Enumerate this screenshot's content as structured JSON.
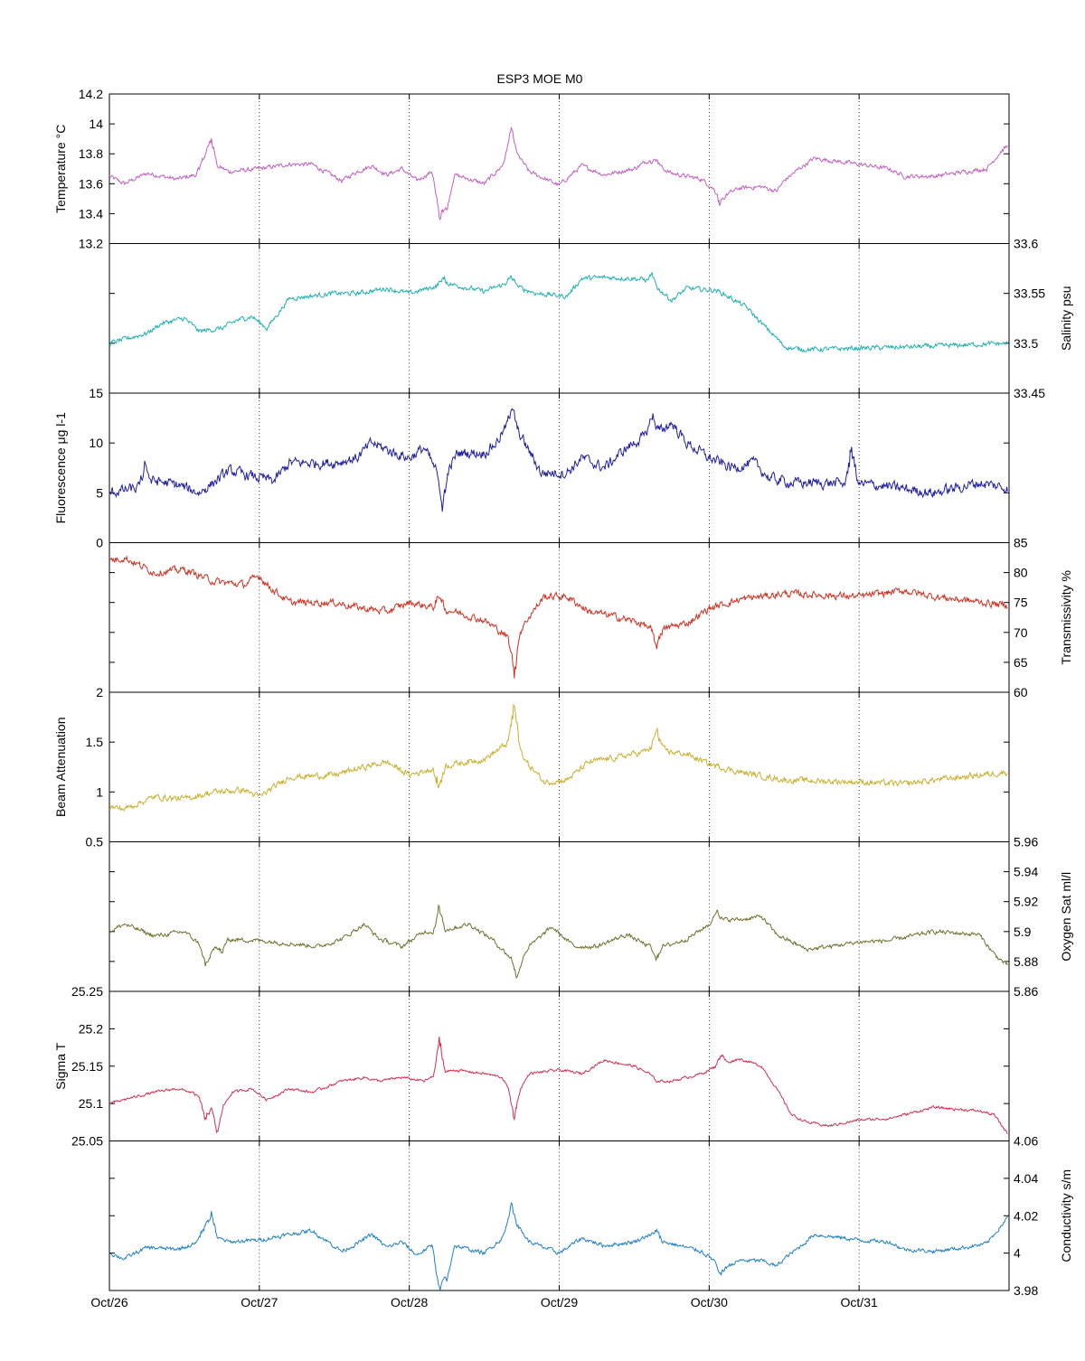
{
  "chart_data": {
    "type": "line",
    "title": "ESP3 MOE   M0",
    "x_axis": {
      "range": [
        "Oct/26",
        "Oct/32"
      ],
      "ticks": [
        "Oct/26",
        "Oct/27",
        "Oct/28",
        "Oct/29",
        "Oct/30",
        "Oct/31"
      ],
      "grid": "vertical dotted"
    },
    "panels": [
      {
        "name": "Temperature °C",
        "ylabel": "Temperature °C",
        "axis_side": "left",
        "color": "#c060c0",
        "ylim": [
          13.2,
          14.2
        ],
        "yticks": [
          "13.2",
          "13.4",
          "13.6",
          "13.8",
          "14",
          "14.2"
        ],
        "noise": 0.012,
        "x": [
          0,
          0.1,
          0.25,
          0.45,
          0.62,
          0.65,
          0.68,
          0.72,
          0.8,
          1.0,
          1.2,
          1.35,
          1.55,
          1.65,
          1.75,
          1.85,
          1.95,
          2.05,
          2.15,
          2.2,
          2.25,
          2.3,
          2.5,
          2.62,
          2.68,
          2.72,
          2.8,
          3.0,
          3.15,
          3.3,
          3.5,
          3.6,
          3.65,
          3.75,
          3.95,
          4.05,
          4.1,
          4.2,
          4.35,
          4.45,
          4.5,
          4.6,
          4.7,
          5.0,
          5.2,
          5.3,
          5.5,
          5.7,
          5.85,
          5.95,
          5.99
        ],
        "y": [
          13.65,
          13.6,
          13.67,
          13.63,
          13.67,
          13.8,
          13.83,
          13.72,
          13.68,
          13.7,
          13.73,
          13.73,
          13.62,
          13.68,
          13.72,
          13.66,
          13.7,
          13.62,
          13.68,
          13.52,
          13.42,
          13.66,
          13.6,
          13.72,
          13.9,
          13.8,
          13.68,
          13.59,
          13.72,
          13.66,
          13.7,
          13.76,
          13.72,
          13.67,
          13.63,
          13.55,
          13.52,
          13.57,
          13.58,
          13.55,
          13.62,
          13.7,
          13.77,
          13.73,
          13.7,
          13.65,
          13.65,
          13.68,
          13.7,
          13.82,
          13.85
        ],
        "spikes": [
          [
            0.62,
            0.1
          ],
          [
            0.68,
            0.1
          ],
          [
            2.2,
            -0.2
          ],
          [
            2.68,
            0.08
          ],
          [
            3.65,
            0.06
          ],
          [
            4.07,
            -0.08
          ]
        ]
      },
      {
        "name": "Salinity psu",
        "ylabel": "Salinity psu",
        "axis_side": "right",
        "color": "#20b0b0",
        "ylim": [
          33.45,
          33.6
        ],
        "yticks": [
          "33.45",
          "33.5",
          "33.55",
          "33.6"
        ],
        "noise": 0.002,
        "x": [
          0,
          0.25,
          0.35,
          0.5,
          0.6,
          0.75,
          0.85,
          0.95,
          1.05,
          1.2,
          1.5,
          1.65,
          1.85,
          2.0,
          2.25,
          2.5,
          2.65,
          2.85,
          3.05,
          3.15,
          3.3,
          3.5,
          3.6,
          3.75,
          3.85,
          4.05,
          4.15,
          4.25,
          4.35,
          4.45,
          4.5,
          4.55,
          4.6,
          4.75,
          5.0,
          5.5,
          5.99
        ],
        "y": [
          33.5,
          33.51,
          33.52,
          33.525,
          33.512,
          33.515,
          33.523,
          33.527,
          33.515,
          33.545,
          33.55,
          33.55,
          33.555,
          33.55,
          33.56,
          33.552,
          33.56,
          33.55,
          33.547,
          33.565,
          33.566,
          33.565,
          33.563,
          33.543,
          33.555,
          33.553,
          33.545,
          33.536,
          33.52,
          33.505,
          33.497,
          33.495,
          33.494,
          33.494,
          33.495,
          33.497,
          33.5
        ],
        "spikes": [
          [
            2.22,
            0.008
          ],
          [
            2.68,
            0.01
          ],
          [
            3.62,
            0.008
          ]
        ]
      },
      {
        "name": "Fluorescence μg l-1",
        "ylabel": "Fluorescence μg l-1",
        "axis_side": "left",
        "color": "#2020a0",
        "ylim": [
          0,
          15
        ],
        "yticks": [
          "0",
          "5",
          "10",
          "15"
        ],
        "noise": 0.45,
        "x": [
          0,
          0.2,
          0.3,
          0.45,
          0.6,
          0.8,
          1.0,
          1.1,
          1.2,
          1.5,
          1.65,
          1.75,
          1.9,
          2.0,
          2.1,
          2.22,
          2.32,
          2.5,
          2.58,
          2.68,
          2.75,
          2.88,
          3.05,
          3.15,
          3.3,
          3.45,
          3.55,
          3.65,
          3.75,
          3.85,
          4.0,
          4.15,
          4.3,
          4.4,
          4.55,
          4.8,
          5.1,
          5.5,
          5.8,
          5.99
        ],
        "y": [
          5.0,
          5.5,
          6.2,
          5.8,
          5.0,
          7.2,
          6.5,
          6.2,
          8.0,
          8.0,
          8.5,
          10.0,
          9.0,
          8.5,
          9.5,
          6.0,
          9.0,
          9.0,
          10.0,
          12.5,
          10.5,
          7.0,
          7.0,
          8.5,
          7.5,
          9.5,
          10.5,
          11.0,
          12.0,
          10.0,
          8.5,
          7.5,
          8.0,
          6.5,
          6.0,
          6.0,
          5.8,
          5.0,
          6.0,
          5.5
        ],
        "spikes": [
          [
            0.24,
            2.5
          ],
          [
            2.22,
            -3.0
          ],
          [
            2.68,
            1.5
          ],
          [
            3.62,
            2.5
          ],
          [
            4.95,
            4.5
          ]
        ]
      },
      {
        "name": "Transmissivity %",
        "ylabel": "Transmissivity %",
        "axis_side": "right",
        "color": "#d03020",
        "ylim": [
          60,
          85
        ],
        "yticks": [
          "60",
          "65",
          "70",
          "75",
          "80",
          "85"
        ],
        "noise": 0.5,
        "x": [
          0,
          0.1,
          0.3,
          0.5,
          0.7,
          0.9,
          1.0,
          1.05,
          1.2,
          1.5,
          1.7,
          1.85,
          2.0,
          2.2,
          2.3,
          2.5,
          2.62,
          2.7,
          2.78,
          2.9,
          3.05,
          3.2,
          3.4,
          3.55,
          3.65,
          3.75,
          3.85,
          4.0,
          4.2,
          4.5,
          5.0,
          5.3,
          5.5,
          5.99
        ],
        "y": [
          82.0,
          82.5,
          80.0,
          80.5,
          78.5,
          78.0,
          79.5,
          78.0,
          75.0,
          75.0,
          74.0,
          73.5,
          75.0,
          74.0,
          73.5,
          72.0,
          70.0,
          68.0,
          72.0,
          76.0,
          76.0,
          73.5,
          72.5,
          71.5,
          70.0,
          71.0,
          71.5,
          74.0,
          75.5,
          76.5,
          76.0,
          77.0,
          76.0,
          74.5
        ],
        "spikes": [
          [
            2.2,
            3.0
          ],
          [
            2.7,
            -6.0
          ],
          [
            3.65,
            -3.0
          ]
        ]
      },
      {
        "name": "Beam Attenuation",
        "ylabel": "Beam Attenuation",
        "axis_side": "left",
        "color": "#c8b030",
        "ylim": [
          0.5,
          2.0
        ],
        "yticks": [
          "0.5",
          "1",
          "1.5",
          "2"
        ],
        "noise": 0.025,
        "x": [
          0,
          0.1,
          0.3,
          0.5,
          0.7,
          0.9,
          1.0,
          1.05,
          1.2,
          1.5,
          1.7,
          1.85,
          2.0,
          2.2,
          2.3,
          2.5,
          2.62,
          2.7,
          2.78,
          2.9,
          3.05,
          3.2,
          3.4,
          3.55,
          3.65,
          3.75,
          3.85,
          4.0,
          4.2,
          4.5,
          5.0,
          5.3,
          5.5,
          5.99
        ],
        "y": [
          0.85,
          0.83,
          0.95,
          0.93,
          1.0,
          1.02,
          0.95,
          1.0,
          1.15,
          1.17,
          1.25,
          1.3,
          1.17,
          1.25,
          1.28,
          1.33,
          1.45,
          1.55,
          1.3,
          1.1,
          1.12,
          1.3,
          1.35,
          1.4,
          1.45,
          1.4,
          1.38,
          1.28,
          1.2,
          1.12,
          1.1,
          1.08,
          1.12,
          1.2
        ],
        "spikes": [
          [
            2.2,
            -0.25
          ],
          [
            2.7,
            0.4
          ],
          [
            3.65,
            0.2
          ]
        ]
      },
      {
        "name": "Oxygen Sat ml/l",
        "ylabel": "Oxygen Sat ml/l",
        "axis_side": "right",
        "color": "#707030",
        "ylim": [
          5.86,
          5.96
        ],
        "yticks": [
          "5.86",
          "5.88",
          "5.9",
          "5.92",
          "5.94",
          "5.96"
        ],
        "noise": 0.0012,
        "x": [
          0,
          0.1,
          0.3,
          0.5,
          0.62,
          0.68,
          0.75,
          1.0,
          1.2,
          1.4,
          1.55,
          1.7,
          1.8,
          1.95,
          2.1,
          2.2,
          2.4,
          2.55,
          2.65,
          2.72,
          2.8,
          2.95,
          3.1,
          3.25,
          3.45,
          3.6,
          3.7,
          3.85,
          4.05,
          4.2,
          4.35,
          4.45,
          4.55,
          4.65,
          4.8,
          5.0,
          5.2,
          5.5,
          5.8,
          5.9,
          5.99
        ],
        "y": [
          5.9,
          5.905,
          5.897,
          5.9,
          5.89,
          5.885,
          5.895,
          5.894,
          5.892,
          5.89,
          5.895,
          5.905,
          5.895,
          5.89,
          5.9,
          5.9,
          5.905,
          5.895,
          5.885,
          5.878,
          5.89,
          5.903,
          5.89,
          5.89,
          5.898,
          5.89,
          5.89,
          5.895,
          5.908,
          5.908,
          5.91,
          5.898,
          5.893,
          5.888,
          5.89,
          5.893,
          5.894,
          5.9,
          5.898,
          5.885,
          5.877
        ],
        "spikes": [
          [
            0.64,
            -0.012
          ],
          [
            0.75,
            -0.01
          ],
          [
            2.2,
            0.02
          ],
          [
            2.72,
            -0.012
          ],
          [
            3.65,
            -0.01
          ],
          [
            4.05,
            0.008
          ]
        ]
      },
      {
        "name": "Sigma T",
        "ylabel": "Sigma T",
        "axis_side": "left",
        "color": "#d03050",
        "ylim": [
          25.05,
          25.25
        ],
        "yticks": [
          "25.05",
          "25.1",
          "25.15",
          "25.2",
          "25.25"
        ],
        "noise": 0.0015,
        "x": [
          0,
          0.15,
          0.3,
          0.45,
          0.55,
          0.65,
          0.72,
          0.82,
          0.95,
          1.05,
          1.2,
          1.35,
          1.55,
          1.7,
          1.8,
          1.95,
          2.1,
          2.2,
          2.3,
          2.5,
          2.62,
          2.7,
          2.8,
          3.0,
          3.15,
          3.3,
          3.5,
          3.6,
          3.65,
          3.75,
          3.95,
          4.05,
          4.2,
          4.35,
          4.45,
          4.55,
          4.65,
          4.8,
          5.0,
          5.2,
          5.5,
          5.8,
          5.9,
          5.99
        ],
        "y": [
          25.1,
          25.108,
          25.115,
          25.12,
          25.115,
          25.1,
          25.085,
          25.115,
          25.12,
          25.105,
          25.12,
          25.115,
          25.13,
          25.135,
          25.13,
          25.135,
          25.13,
          25.14,
          25.145,
          25.14,
          25.135,
          25.105,
          25.14,
          25.145,
          25.14,
          25.158,
          25.15,
          25.14,
          25.13,
          25.13,
          25.14,
          25.15,
          25.16,
          25.15,
          25.12,
          25.085,
          25.075,
          25.07,
          25.078,
          25.08,
          25.095,
          25.09,
          25.085,
          25.06
        ],
        "spikes": [
          [
            2.2,
            0.055
          ],
          [
            0.64,
            -0.03
          ],
          [
            0.72,
            -0.03
          ],
          [
            2.7,
            -0.03
          ],
          [
            4.08,
            0.018
          ]
        ]
      },
      {
        "name": "Conductivity s/m",
        "ylabel": "Conductivity s/m",
        "axis_side": "right",
        "color": "#2080c0",
        "ylim": [
          3.98,
          4.06
        ],
        "yticks": [
          "3.98",
          "4",
          "4.02",
          "4.04",
          "4.06"
        ],
        "noise": 0.0009,
        "x": [
          0,
          0.1,
          0.25,
          0.45,
          0.62,
          0.65,
          0.68,
          0.72,
          0.8,
          1.0,
          1.2,
          1.35,
          1.55,
          1.65,
          1.75,
          1.85,
          1.95,
          2.05,
          2.15,
          2.2,
          2.25,
          2.3,
          2.5,
          2.62,
          2.68,
          2.72,
          2.8,
          3.0,
          3.15,
          3.3,
          3.5,
          3.6,
          3.65,
          3.75,
          3.95,
          4.05,
          4.1,
          4.2,
          4.35,
          4.45,
          4.5,
          4.6,
          4.7,
          5.0,
          5.2,
          5.3,
          5.5,
          5.7,
          5.85,
          5.95,
          5.99
        ],
        "y": [
          4.0,
          3.997,
          4.003,
          4.002,
          4.006,
          4.014,
          4.015,
          4.008,
          4.006,
          4.007,
          4.01,
          4.012,
          4.001,
          4.005,
          4.01,
          4.003,
          4.006,
          3.999,
          4.004,
          3.993,
          3.985,
          4.004,
          4.0,
          4.008,
          4.02,
          4.015,
          4.006,
          4.0,
          4.008,
          4.004,
          4.006,
          4.01,
          4.007,
          4.005,
          4.001,
          3.995,
          3.992,
          3.996,
          3.996,
          3.993,
          3.997,
          4.003,
          4.01,
          4.007,
          4.006,
          4.002,
          4.001,
          4.003,
          4.005,
          4.015,
          4.019
        ],
        "spikes": [
          [
            0.62,
            0.008
          ],
          [
            0.68,
            0.008
          ],
          [
            2.2,
            -0.015
          ],
          [
            2.68,
            0.008
          ],
          [
            3.65,
            0.006
          ],
          [
            4.07,
            -0.006
          ]
        ]
      }
    ]
  }
}
